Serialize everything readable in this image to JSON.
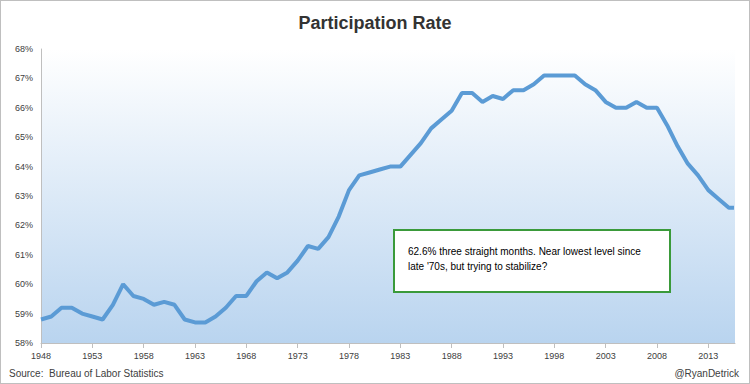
{
  "chart_data": {
    "type": "line",
    "title": "Participation Rate",
    "annotations": [
      "62.6% three straight months. Near lowest level since late '70s, but trying to stabilize?",
      "Source:  Bureau of Labor Statistics",
      "@RyanDetrick"
    ],
    "x": [
      1948,
      1949,
      1950,
      1951,
      1952,
      1953,
      1954,
      1955,
      1956,
      1957,
      1958,
      1959,
      1960,
      1961,
      1962,
      1963,
      1964,
      1965,
      1966,
      1967,
      1968,
      1969,
      1970,
      1971,
      1972,
      1973,
      1974,
      1975,
      1976,
      1977,
      1978,
      1979,
      1980,
      1981,
      1982,
      1983,
      1984,
      1985,
      1986,
      1987,
      1988,
      1989,
      1990,
      1991,
      1992,
      1993,
      1994,
      1995,
      1996,
      1997,
      1998,
      1999,
      2000,
      2001,
      2002,
      2003,
      2004,
      2005,
      2006,
      2007,
      2008,
      2009,
      2010,
      2011,
      2012,
      2013,
      2014,
      2015,
      2015.5
    ],
    "values": [
      58.8,
      58.9,
      59.2,
      59.2,
      59.0,
      58.9,
      58.8,
      59.3,
      60.0,
      59.6,
      59.5,
      59.3,
      59.4,
      59.3,
      58.8,
      58.7,
      58.7,
      58.9,
      59.2,
      59.6,
      59.6,
      60.1,
      60.4,
      60.2,
      60.4,
      60.8,
      61.3,
      61.2,
      61.6,
      62.3,
      63.2,
      63.7,
      63.8,
      63.9,
      64.0,
      64.0,
      64.4,
      64.8,
      65.3,
      65.6,
      65.9,
      66.5,
      66.5,
      66.2,
      66.4,
      66.3,
      66.6,
      66.6,
      66.8,
      67.1,
      67.1,
      67.1,
      67.1,
      66.8,
      66.6,
      66.2,
      66.0,
      66.0,
      66.2,
      66.0,
      66.0,
      65.4,
      64.7,
      64.1,
      63.7,
      63.2,
      62.9,
      62.6,
      62.6
    ],
    "color": "#5b9bd5",
    "xlim": [
      1948,
      2015.6
    ],
    "xticks": [
      1948,
      1953,
      1958,
      1963,
      1968,
      1973,
      1978,
      1983,
      1988,
      1993,
      1998,
      2003,
      2008,
      2013
    ],
    "ylim": [
      58,
      68
    ],
    "yticks": [
      {
        "value": 58,
        "label": "58%"
      },
      {
        "value": 59,
        "label": "59%"
      },
      {
        "value": 60,
        "label": "60%"
      },
      {
        "value": 61,
        "label": "61%"
      },
      {
        "value": 62,
        "label": "62%"
      },
      {
        "value": 63,
        "label": "63%"
      },
      {
        "value": 64,
        "label": "64%"
      },
      {
        "value": 65,
        "label": "65%"
      },
      {
        "value": 66,
        "label": "66%"
      },
      {
        "value": 67,
        "label": "67%"
      },
      {
        "value": 68,
        "label": "68%"
      }
    ],
    "grid": false
  }
}
